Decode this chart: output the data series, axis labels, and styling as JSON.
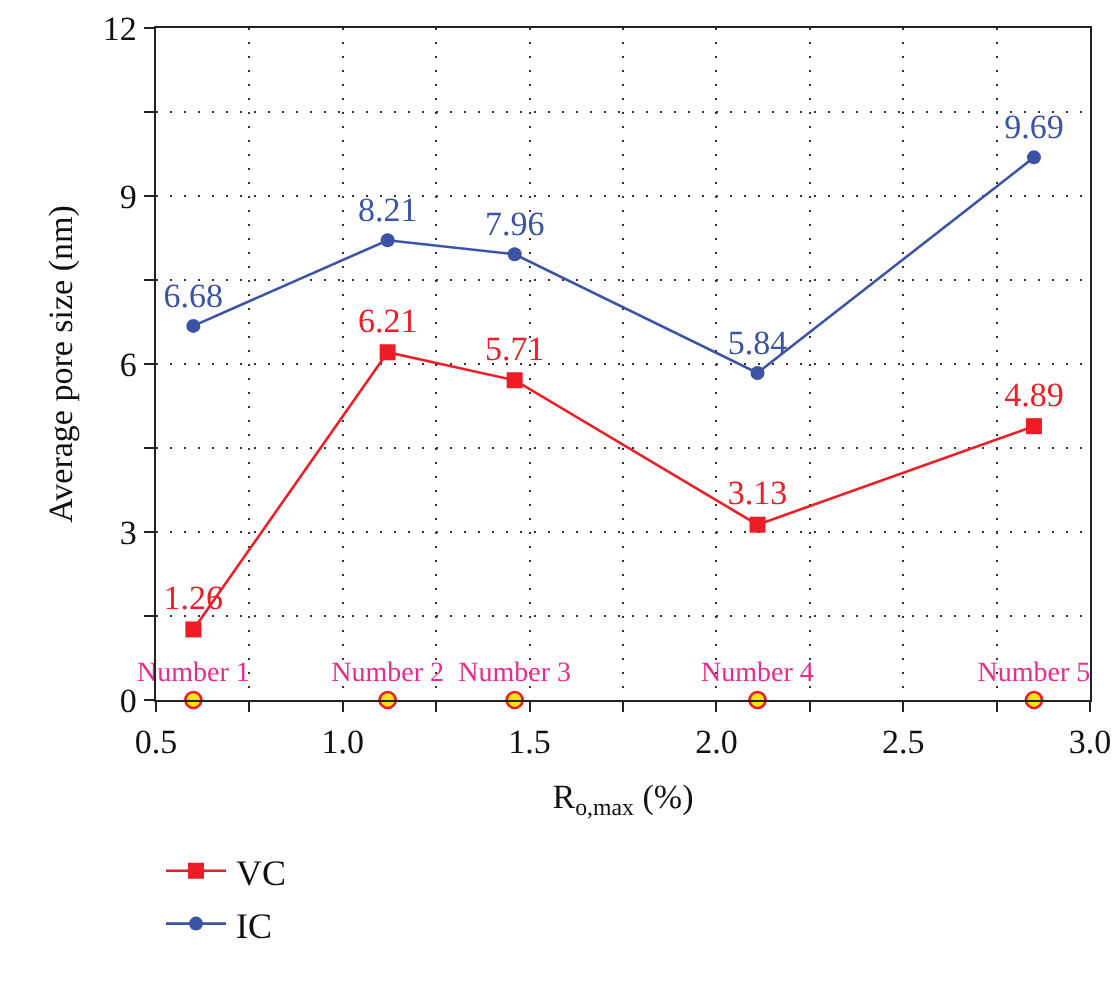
{
  "chart_data": {
    "type": "line",
    "xlabel": "R$_{o,max}$ (%)",
    "ylabel": "Average pore size (nm)",
    "xlim": [
      0.5,
      3.0
    ],
    "xticks": [
      0.5,
      {
        "value": 0.75,
        "label": null
      },
      {
        "value": 1,
        "label": "1.0"
      },
      {
        "value": 1.25,
        "label": null
      },
      1.5,
      {
        "value": 1.75,
        "label": null
      },
      {
        "value": 2,
        "label": "2.0"
      },
      {
        "value": 2.25,
        "label": null
      },
      2.5,
      {
        "value": 2.75,
        "label": null
      },
      {
        "value": 3,
        "label": "3.0"
      }
    ],
    "ylim": [
      0,
      12
    ],
    "yticks": [
      0,
      {
        "value": 1.5,
        "label": null
      },
      3,
      {
        "value": 4.5,
        "label": null
      },
      6,
      {
        "value": 7.5,
        "label": null
      },
      9,
      {
        "value": 10.5,
        "label": null
      },
      12
    ],
    "grid": true,
    "legend": "bottom left",
    "line_style": "solid",
    "series": [
      {
        "name": "VC",
        "color": "#ee1c25",
        "marker": "square",
        "x": [
          0.6,
          1.12,
          1.46,
          2.11,
          2.85
        ],
        "values": [
          1.26,
          6.21,
          5.71,
          3.13,
          4.89
        ],
        "value_labels": [
          "1.26",
          "6.21",
          "5.71",
          "3.13",
          "4.89"
        ]
      },
      {
        "name": "IC",
        "color": "#3a53a4",
        "marker": "circle",
        "x": [
          0.6,
          1.12,
          1.46,
          2.11,
          2.85
        ],
        "values": [
          6.68,
          8.21,
          7.96,
          5.84,
          9.69
        ],
        "value_labels": [
          "6.68",
          "8.21",
          "7.96",
          "5.84",
          "9.69"
        ]
      },
      {
        "type": "scatter",
        "color": "#ffe21a",
        "marker": "circle",
        "x": [
          0.6,
          1.12,
          1.46,
          2.11,
          2.85
        ],
        "values": [
          0,
          0,
          0,
          0,
          0
        ],
        "value_labels": [
          "Number 1",
          "Number 2",
          "Number 3",
          "Number 4",
          "Number 5"
        ]
      }
    ]
  }
}
